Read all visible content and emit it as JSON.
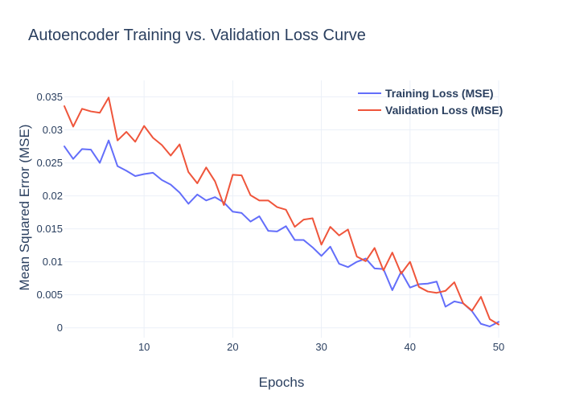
{
  "chart_data": {
    "type": "line",
    "title": "Autoencoder Training vs. Validation Loss Curve",
    "xlabel": "Epochs",
    "ylabel": "Mean Squared Error (MSE)",
    "xlim": [
      1,
      50
    ],
    "ylim": [
      -0.0015,
      0.0375
    ],
    "x_ticks": [
      10,
      20,
      30,
      40,
      50
    ],
    "y_ticks": [
      0,
      0.005,
      0.01,
      0.015,
      0.02,
      0.025,
      0.03,
      0.035
    ],
    "y_tick_labels": [
      "0",
      "0.005",
      "0.01",
      "0.015",
      "0.02",
      "0.025",
      "0.03",
      "0.035"
    ],
    "grid": true,
    "legend_position": "top-right",
    "x": [
      1,
      2,
      3,
      4,
      5,
      6,
      7,
      8,
      9,
      10,
      11,
      12,
      13,
      14,
      15,
      16,
      17,
      18,
      19,
      20,
      21,
      22,
      23,
      24,
      25,
      26,
      27,
      28,
      29,
      30,
      31,
      32,
      33,
      34,
      35,
      36,
      37,
      38,
      39,
      40,
      41,
      42,
      43,
      44,
      45,
      46,
      47,
      48,
      49,
      50
    ],
    "series": [
      {
        "name": "Training Loss (MSE)",
        "color": "#636efa",
        "values": [
          0.0275,
          0.0256,
          0.0271,
          0.027,
          0.025,
          0.0284,
          0.0245,
          0.0238,
          0.023,
          0.0233,
          0.0235,
          0.0224,
          0.0217,
          0.0205,
          0.0188,
          0.0202,
          0.0193,
          0.0198,
          0.019,
          0.0176,
          0.0174,
          0.0161,
          0.0169,
          0.0147,
          0.0146,
          0.0154,
          0.0133,
          0.0133,
          0.0122,
          0.0109,
          0.0123,
          0.0097,
          0.0092,
          0.01,
          0.0105,
          0.009,
          0.0089,
          0.0057,
          0.0085,
          0.0061,
          0.0066,
          0.0067,
          0.007,
          0.0032,
          0.004,
          0.0037,
          0.0025,
          0.0006,
          0.0002,
          0.0009
        ]
      },
      {
        "name": "Validation Loss (MSE)",
        "color": "#ef553b",
        "values": [
          0.0336,
          0.0305,
          0.0332,
          0.0328,
          0.0326,
          0.0349,
          0.0284,
          0.0297,
          0.0282,
          0.0306,
          0.0288,
          0.0277,
          0.0261,
          0.0278,
          0.0236,
          0.0219,
          0.0243,
          0.0222,
          0.0186,
          0.0232,
          0.0231,
          0.0201,
          0.0193,
          0.0193,
          0.0183,
          0.0179,
          0.0153,
          0.0164,
          0.0166,
          0.0126,
          0.0153,
          0.014,
          0.0149,
          0.0108,
          0.0101,
          0.0121,
          0.0087,
          0.0114,
          0.0082,
          0.01,
          0.0062,
          0.0055,
          0.0053,
          0.0056,
          0.0069,
          0.0037,
          0.0026,
          0.0047,
          0.0013,
          0.0005
        ]
      }
    ]
  }
}
